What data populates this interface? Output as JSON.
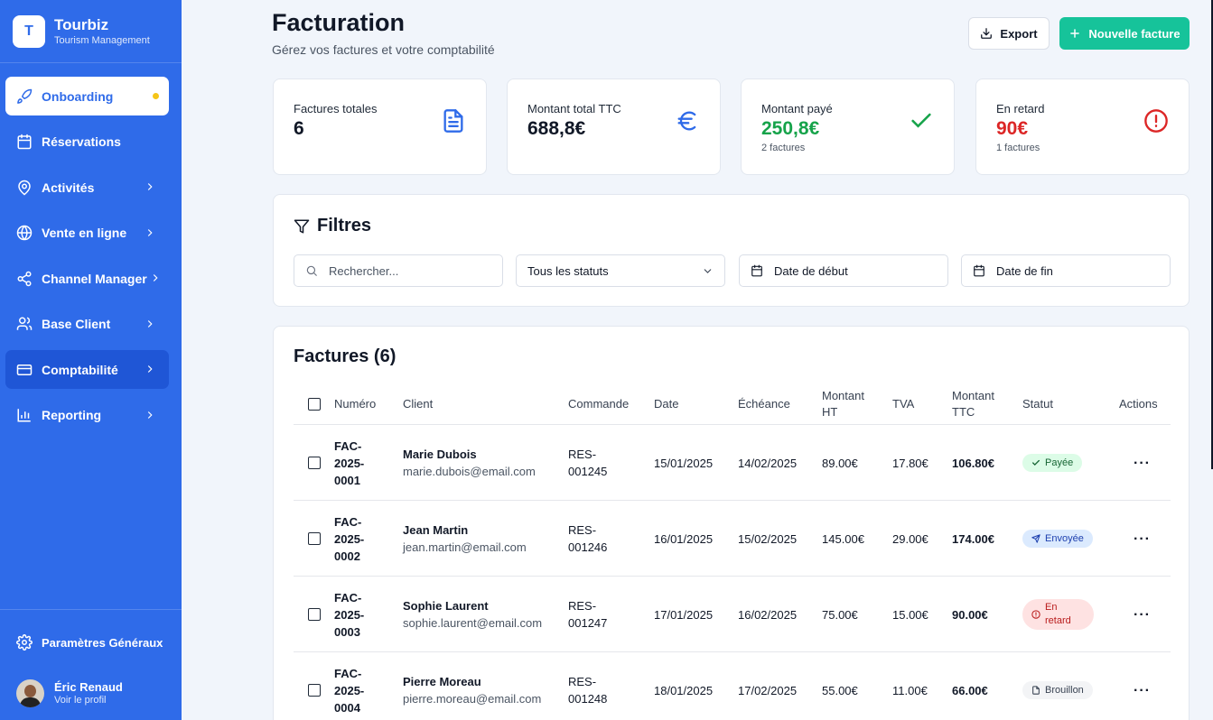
{
  "brand": {
    "logo_letter": "T",
    "name": "Tourbiz",
    "subtitle": "Tourism Management"
  },
  "sidebar": {
    "items": [
      {
        "label": "Onboarding",
        "icon": "rocket-icon"
      },
      {
        "label": "Réservations",
        "icon": "calendar-icon"
      },
      {
        "label": "Activités",
        "icon": "map-pin-icon"
      },
      {
        "label": "Vente en ligne",
        "icon": "globe-icon"
      },
      {
        "label": "Channel Manager",
        "icon": "share-icon"
      },
      {
        "label": "Base Client",
        "icon": "users-icon"
      },
      {
        "label": "Comptabilité",
        "icon": "credit-card-icon"
      },
      {
        "label": "Reporting",
        "icon": "bar-chart-icon"
      }
    ],
    "settings_label": "Paramètres Généraux",
    "user": {
      "name": "Éric Renaud",
      "subtitle": "Voir le profil"
    }
  },
  "header": {
    "title": "Facturation",
    "subtitle": "Gérez vos factures et votre comptabilité",
    "export_label": "Export",
    "new_invoice_label": "Nouvelle facture"
  },
  "stats": [
    {
      "label": "Factures totales",
      "value": "6",
      "note": ""
    },
    {
      "label": "Montant total TTC",
      "value": "688,8€",
      "note": ""
    },
    {
      "label": "Montant payé",
      "value": "250,8€",
      "note": "2 factures"
    },
    {
      "label": "En retard",
      "value": "90€",
      "note": "1 factures"
    }
  ],
  "colors": {
    "accent": "#2f6be9",
    "success": "#16a34a",
    "danger": "#dc2626",
    "primary_button": "#16c39a"
  },
  "filters": {
    "title": "Filtres",
    "search_placeholder": "Rechercher...",
    "status_value": "Tous les statuts",
    "start_date": "Date de début",
    "end_date": "Date de fin"
  },
  "table": {
    "title": "Factures (6)",
    "columns": [
      "Numéro",
      "Client",
      "Commande",
      "Date",
      "Échéance",
      "Montant HT",
      "TVA",
      "Montant TTC",
      "Statut",
      "Actions"
    ],
    "rows": [
      {
        "numero": "FAC-2025-0001",
        "client": "Marie Dubois",
        "email": "marie.dubois@email.com",
        "commande": "RES-001245",
        "date": "15/01/2025",
        "echeance": "14/02/2025",
        "ht": "89.00€",
        "tva": "17.80€",
        "ttc": "106.80€",
        "statut": "Payée"
      },
      {
        "numero": "FAC-2025-0002",
        "client": "Jean Martin",
        "email": "jean.martin@email.com",
        "commande": "RES-001246",
        "date": "16/01/2025",
        "echeance": "15/02/2025",
        "ht": "145.00€",
        "tva": "29.00€",
        "ttc": "174.00€",
        "statut": "Envoyée"
      },
      {
        "numero": "FAC-2025-0003",
        "client": "Sophie Laurent",
        "email": "sophie.laurent@email.com",
        "commande": "RES-001247",
        "date": "17/01/2025",
        "echeance": "16/02/2025",
        "ht": "75.00€",
        "tva": "15.00€",
        "ttc": "90.00€",
        "statut": "En retard"
      },
      {
        "numero": "FAC-2025-0004",
        "client": "Pierre Moreau",
        "email": "pierre.moreau@email.com",
        "commande": "RES-001248",
        "date": "18/01/2025",
        "echeance": "17/02/2025",
        "ht": "55.00€",
        "tva": "11.00€",
        "ttc": "66.00€",
        "statut": "Brouillon"
      }
    ]
  }
}
